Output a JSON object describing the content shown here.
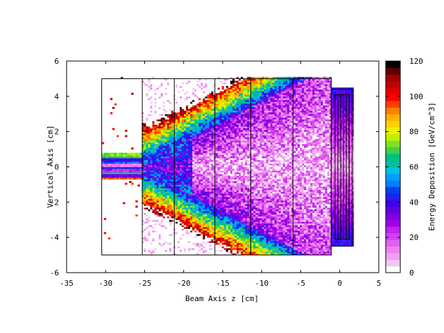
{
  "chart_data": {
    "type": "heatmap",
    "title": "",
    "xlabel": "Beam Axis z [cm]",
    "ylabel": "Vertical Axis [cm]",
    "xlim": [
      -35,
      5
    ],
    "ylim": [
      -6,
      6
    ],
    "x_ticks": [
      -35,
      -30,
      -25,
      -20,
      -15,
      -10,
      -5,
      0,
      5
    ],
    "y_ticks": [
      -6,
      -4,
      -2,
      0,
      2,
      4,
      6
    ],
    "grid": false,
    "colorbar": {
      "label": "Energy Deposition [GeV/cm^3]",
      "min": 0,
      "max": 120,
      "ticks": [
        0,
        20,
        40,
        60,
        80,
        100,
        120
      ],
      "palette": [
        "#ffffff",
        "#f0c8f0",
        "#f0a0f0",
        "#f080f0",
        "#e060f0",
        "#d040f0",
        "#c020f0",
        "#a000e0",
        "#8000e0",
        "#6000e0",
        "#4000f0",
        "#2020f0",
        "#0040f0",
        "#0080ff",
        "#00a0ff",
        "#00c0e0",
        "#00c0a0",
        "#00c080",
        "#40d040",
        "#80e020",
        "#c0f000",
        "#f0f000",
        "#ffd000",
        "#ffb000",
        "#ff8000",
        "#ff4000",
        "#ff0000",
        "#e00000",
        "#c00000",
        "#a00000",
        "#600000",
        "#000000"
      ]
    },
    "regions": {
      "main_volume": {
        "x": [
          -30.5,
          -1.1
        ],
        "y": [
          -5.0,
          5.0
        ]
      },
      "segment_boundaries_z": [
        -25.3,
        -21.2,
        -16.0,
        -11.4,
        -6.0
      ],
      "downstream_block": {
        "x": [
          -1.1,
          1.6
        ],
        "y": [
          -4.5,
          4.4
        ]
      },
      "downstream_inner_box": {
        "x": [
          -0.6,
          1.2
        ],
        "y": [
          -4.1,
          4.1
        ]
      }
    },
    "beam_core_band": {
      "y": [
        -0.75,
        0.75
      ],
      "z_start": -30.5,
      "z_end": -24.0
    }
  }
}
